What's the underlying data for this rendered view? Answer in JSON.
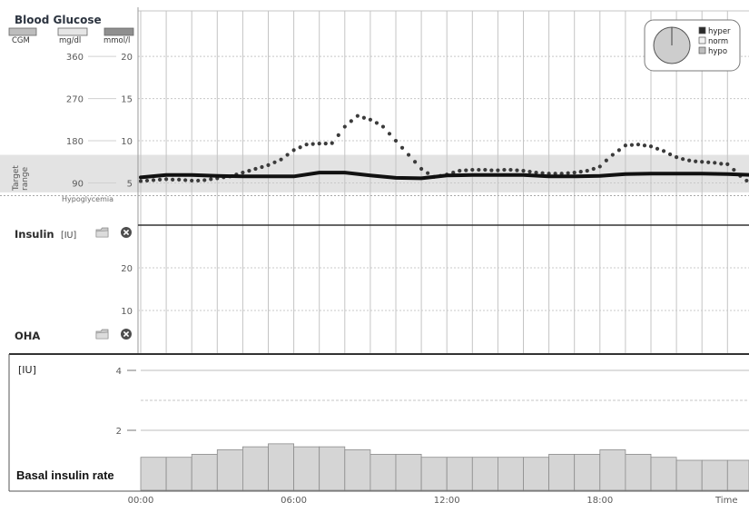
{
  "glucose_panel": {
    "target_label": "Target range",
    "hypo_label": "Hypoglycemia"
  },
  "oha_panel": {
    "label": "OHA"
  },
  "icons": {
    "insulin_folder": "folder-icon",
    "insulin_close": "close-circle-icon",
    "oha_folder": "folder-icon",
    "oha_close": "close-circle-icon"
  },
  "colors": {
    "cgm_dots": "#3b3b3b",
    "line": "#111111",
    "target_band": "#e3e3e3",
    "grid": "#c4c4c4",
    "grid_dash": "#c8c8c8",
    "legend_cgm": "#bdbdbd",
    "legend_mgdl": "#e6e6e6",
    "legend_mmol": "#8f8f8f",
    "bar_fill": "#d5d5d5",
    "bar_stroke": "#8c8c8c",
    "pie_slices": {
      "hyper": "#2b2b2b",
      "norm": "#cdcdcd",
      "hypo": "#a8a8a8"
    },
    "legend_swatches": {
      "hyper": "#2b2b2b",
      "norm": "#f3f3f3",
      "hypo": "#bdbdbd"
    }
  },
  "chart_data": [
    {
      "type": "scatter",
      "title": "Blood Glucose",
      "ylabel": "mg/dl",
      "y2label": "mmol/l",
      "ylim": [
        0,
        457
      ],
      "yticks": [
        360,
        270,
        180,
        90
      ],
      "y2ticks": [
        20,
        15,
        10,
        5
      ],
      "xlim_hours": [
        0,
        24
      ],
      "target_range": [
        70,
        150
      ],
      "hypoglycemia_threshold": 63,
      "grid": true,
      "series": [
        {
          "name": "CGM",
          "type": "scatter",
          "x_start_hour": 0,
          "x_step_minutes": 15,
          "values": [
            94,
            95,
            96,
            97,
            98,
            97,
            97,
            96,
            95,
            95,
            96,
            98,
            100,
            102,
            104,
            108,
            112,
            116,
            120,
            124,
            128,
            134,
            140,
            150,
            160,
            166,
            172,
            173,
            174,
            174,
            175,
            192,
            210,
            222,
            233,
            229,
            225,
            218,
            210,
            195,
            180,
            165,
            150,
            135,
            120,
            111,
            103,
            105,
            108,
            112,
            116,
            117,
            118,
            118,
            118,
            117,
            117,
            118,
            118,
            117,
            116,
            114,
            112,
            111,
            110,
            110,
            110,
            111,
            112,
            114,
            116,
            120,
            125,
            138,
            150,
            160,
            170,
            171,
            172,
            170,
            168,
            163,
            158,
            151,
            145,
            141,
            138,
            136,
            135,
            134,
            133,
            131,
            130,
            118,
            105,
            95
          ]
        },
        {
          "type": "line",
          "x_start_hour": 0,
          "x_step_minutes": 60,
          "values": [
            102,
            107,
            107,
            105,
            104,
            104,
            104,
            112,
            112,
            106,
            101,
            100,
            106,
            107,
            107,
            107,
            104,
            104,
            105,
            109,
            110,
            110,
            110,
            109,
            107
          ]
        }
      ]
    },
    {
      "type": "pie",
      "slices": [
        {
          "label": "hyper",
          "value": 0
        },
        {
          "label": "norm",
          "value": 100
        },
        {
          "label": "hypo",
          "value": 0
        }
      ]
    },
    {
      "type": "bar",
      "title": "Insulin",
      "ylabel": "[IU]",
      "ylim": [
        0,
        30
      ],
      "yticks": [
        20,
        10
      ],
      "values": []
    },
    {
      "type": "bar",
      "title": "Basal insulin rate",
      "ylabel": "[IU]",
      "xlabel": "Time",
      "ylim": [
        0,
        4.5
      ],
      "yticks": [
        4,
        2
      ],
      "reference_line": 3,
      "x_start_hour": 0,
      "x_step_minutes": 60,
      "xticks": [
        {
          "label": "00:00",
          "hour": 0
        },
        {
          "label": "06:00",
          "hour": 6
        },
        {
          "label": "12:00",
          "hour": 12
        },
        {
          "label": "18:00",
          "hour": 18
        }
      ],
      "values": [
        1.1,
        1.1,
        1.2,
        1.35,
        1.45,
        1.55,
        1.45,
        1.45,
        1.35,
        1.2,
        1.2,
        1.1,
        1.1,
        1.1,
        1.1,
        1.1,
        1.2,
        1.2,
        1.35,
        1.2,
        1.1,
        1.0,
        1.0,
        1.0
      ]
    }
  ]
}
